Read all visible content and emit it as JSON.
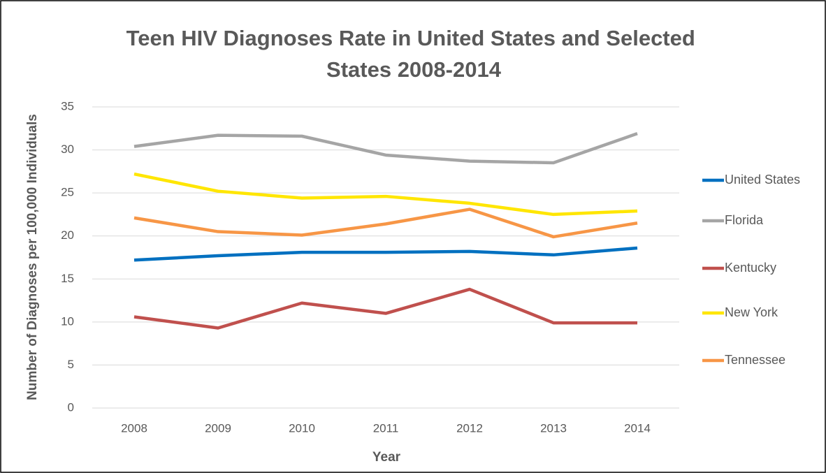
{
  "chart_data": {
    "type": "line",
    "title": "Teen HIV Diagnoses Rate in United States and Selected States 2008-2014",
    "x_label": "Year",
    "y_label": "Number of Diagnoses per 100,000 Individuals",
    "categories": [
      "2008",
      "2009",
      "2010",
      "2011",
      "2012",
      "2013",
      "2014"
    ],
    "series": [
      {
        "name": "United States",
        "color": "#0070c0",
        "values": [
          17.2,
          17.7,
          18.1,
          18.1,
          18.2,
          17.8,
          18.6
        ]
      },
      {
        "name": "Florida",
        "color": "#a5a5a5",
        "values": [
          30.4,
          31.7,
          31.6,
          29.4,
          28.7,
          28.5,
          31.9
        ]
      },
      {
        "name": "Kentucky",
        "color": "#c0504d",
        "values": [
          10.6,
          9.3,
          12.2,
          11.0,
          13.8,
          9.9,
          9.9
        ]
      },
      {
        "name": "New York",
        "color": "#ffe600",
        "values": [
          27.2,
          25.2,
          24.4,
          24.6,
          23.8,
          22.5,
          22.9
        ]
      },
      {
        "name": "Tennessee",
        "color": "#f79646",
        "values": [
          22.1,
          20.5,
          20.1,
          21.4,
          23.1,
          19.9,
          21.5
        ]
      }
    ],
    "ylim": [
      0,
      35
    ],
    "yticks": [
      0,
      5,
      10,
      15,
      20,
      25,
      30,
      35
    ],
    "grid": true,
    "legend": "right"
  }
}
